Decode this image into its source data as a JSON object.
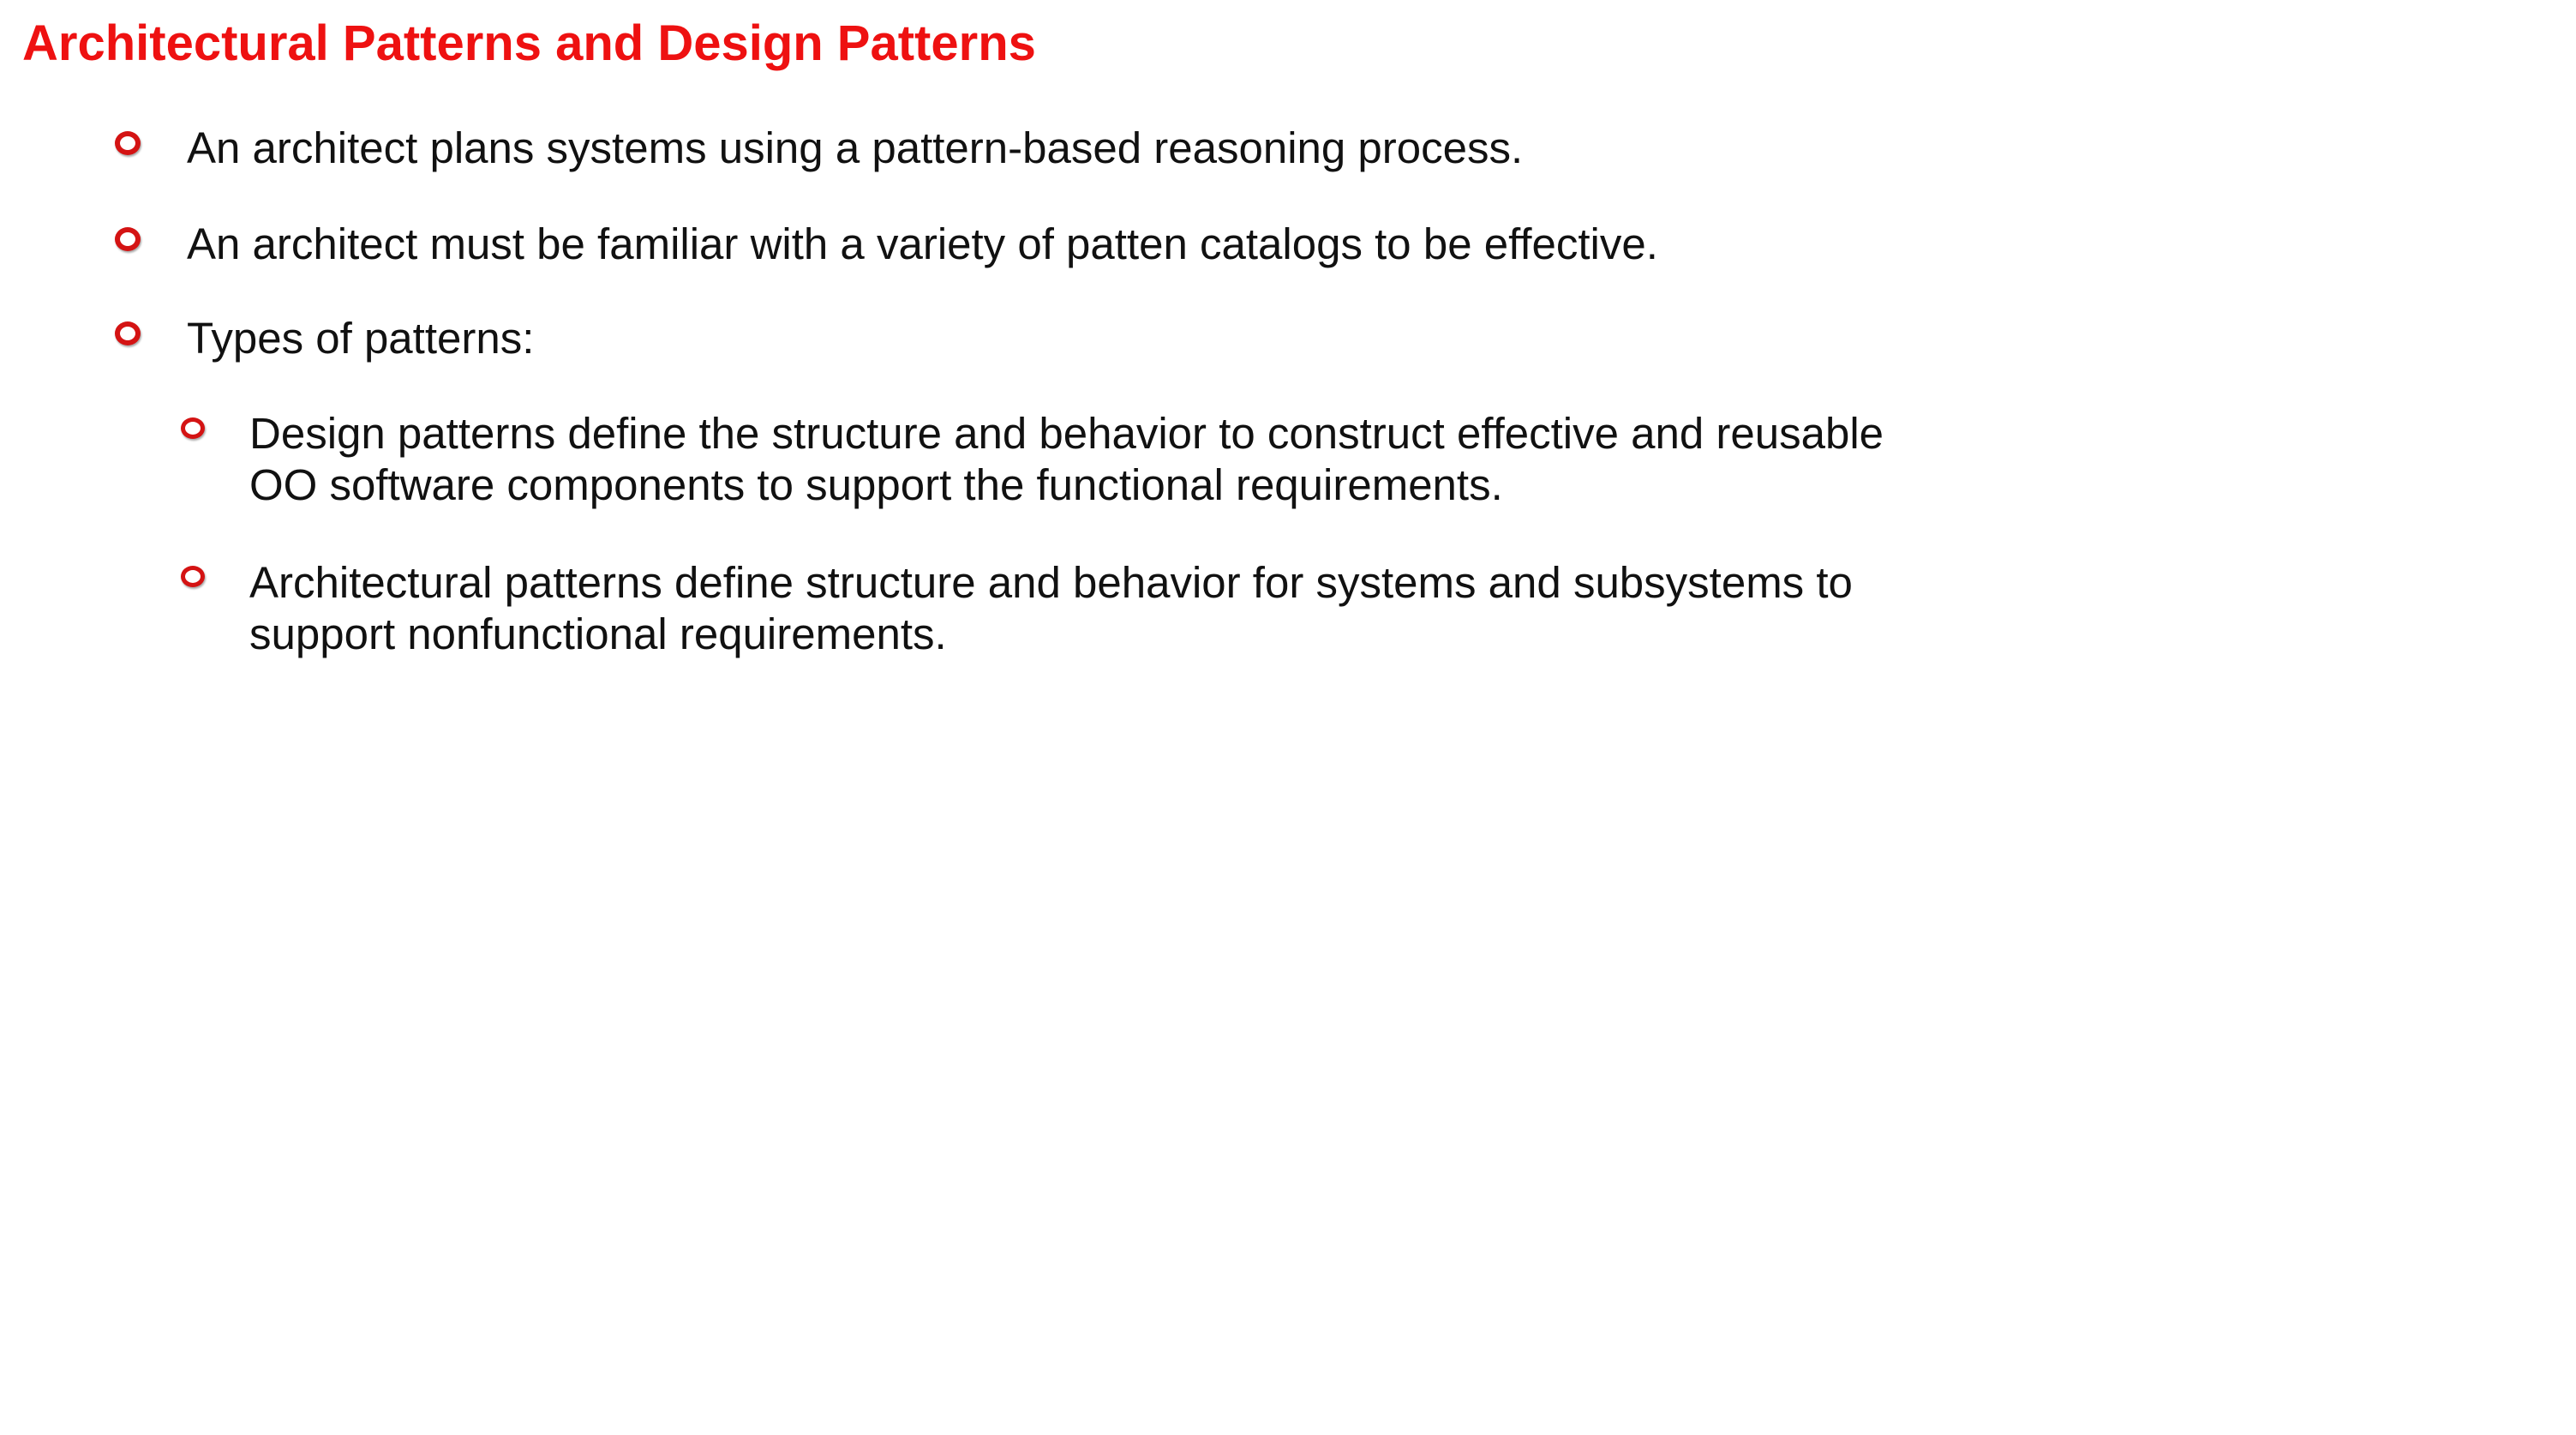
{
  "slide": {
    "title": "Architectural Patterns and Design Patterns",
    "accent_color": "#ee1111",
    "bullet_icon": "hollow-circle-bullet",
    "bullets": [
      {
        "text": "An architect plans systems using a pattern-based reasoning process."
      },
      {
        "text": "An architect must be familiar with a variety of patten catalogs to be effective."
      },
      {
        "text": "Types of patterns:",
        "sub_bullets": [
          {
            "line1": "Design patterns define the structure and behavior to construct effective and reusable",
            "line2": "OO software components  to support the functional requirements."
          },
          {
            "line1": "Architectural patterns define structure and behavior for systems and subsystems to",
            "line2": "support nonfunctional requirements."
          }
        ]
      }
    ]
  }
}
